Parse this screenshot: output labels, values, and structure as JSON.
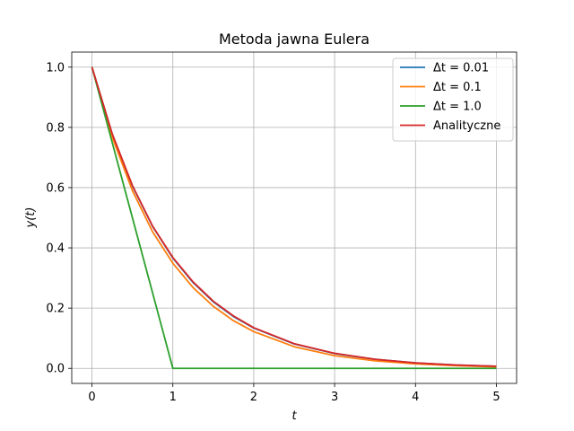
{
  "chart_data": {
    "type": "line",
    "title": "Metoda jawna Eulera",
    "xlabel": "t",
    "ylabel": "y(t)",
    "xlim": [
      -0.25,
      5.25
    ],
    "ylim": [
      -0.05,
      1.05
    ],
    "xticks": [
      0,
      1,
      2,
      3,
      4,
      5
    ],
    "xtick_labels": [
      "0",
      "1",
      "2",
      "3",
      "4",
      "5"
    ],
    "yticks": [
      0.0,
      0.2,
      0.4,
      0.6,
      0.8,
      1.0
    ],
    "ytick_labels": [
      "0.0",
      "0.2",
      "0.4",
      "0.6",
      "0.8",
      "1.0"
    ],
    "grid": true,
    "legend_position": "top-right",
    "series": [
      {
        "name": "Δt = 0.01",
        "color": "#1f77b4",
        "x": [
          0,
          0.25,
          0.5,
          0.75,
          1,
          1.25,
          1.5,
          1.75,
          2,
          2.5,
          3,
          3.5,
          4,
          4.5,
          5
        ],
        "y": [
          1.0,
          0.778,
          0.605,
          0.471,
          0.366,
          0.285,
          0.221,
          0.172,
          0.134,
          0.081,
          0.049,
          0.03,
          0.018,
          0.011,
          0.007
        ]
      },
      {
        "name": "Δt = 0.1",
        "color": "#ff7f0e",
        "x": [
          0,
          0.25,
          0.5,
          0.75,
          1,
          1.25,
          1.5,
          1.75,
          2,
          2.5,
          3,
          3.5,
          4,
          4.5,
          5
        ],
        "y": [
          1.0,
          0.768,
          0.59,
          0.453,
          0.349,
          0.268,
          0.206,
          0.158,
          0.122,
          0.072,
          0.042,
          0.025,
          0.015,
          0.009,
          0.005
        ]
      },
      {
        "name": "Δt = 1.0",
        "color": "#2ca02c",
        "x": [
          0,
          1,
          2,
          3,
          4,
          5
        ],
        "y": [
          1.0,
          0.0,
          0.0,
          0.0,
          0.0,
          0.0
        ]
      },
      {
        "name": "Analityczne",
        "color": "#d62728",
        "x": [
          0,
          0.25,
          0.5,
          0.75,
          1,
          1.25,
          1.5,
          1.75,
          2,
          2.5,
          3,
          3.5,
          4,
          4.5,
          5
        ],
        "y": [
          1.0,
          0.779,
          0.607,
          0.472,
          0.368,
          0.287,
          0.223,
          0.174,
          0.135,
          0.082,
          0.05,
          0.03,
          0.018,
          0.011,
          0.007
        ]
      }
    ]
  }
}
